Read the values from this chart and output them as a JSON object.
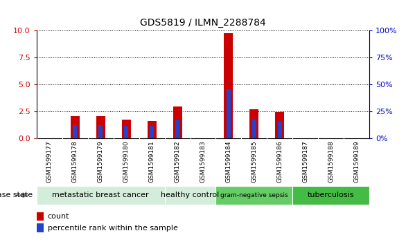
{
  "title": "GDS5819 / ILMN_2288784",
  "samples": [
    "GSM1599177",
    "GSM1599178",
    "GSM1599179",
    "GSM1599180",
    "GSM1599181",
    "GSM1599182",
    "GSM1599183",
    "GSM1599184",
    "GSM1599185",
    "GSM1599186",
    "GSM1599187",
    "GSM1599188",
    "GSM1599189"
  ],
  "count": [
    0,
    2.0,
    2.0,
    1.7,
    1.6,
    2.9,
    0,
    9.7,
    2.7,
    2.4,
    0,
    0,
    0
  ],
  "percentile": [
    0,
    1.2,
    1.2,
    1.1,
    1.1,
    1.7,
    0,
    4.5,
    1.7,
    1.5,
    0,
    0,
    0
  ],
  "disease_groups": [
    {
      "label": "metastatic breast cancer",
      "start": 0,
      "end": 5,
      "color": "#d4edda"
    },
    {
      "label": "healthy control",
      "start": 5,
      "end": 7,
      "color": "#d4edda"
    },
    {
      "label": "gram-negative sepsis",
      "start": 7,
      "end": 10,
      "color": "#66cc66"
    },
    {
      "label": "tuberculosis",
      "start": 10,
      "end": 13,
      "color": "#44bb44"
    }
  ],
  "ylim_left": [
    0,
    10
  ],
  "ylim_right": [
    0,
    100
  ],
  "yticks_left": [
    0,
    2.5,
    5,
    7.5,
    10
  ],
  "yticks_right": [
    0,
    25,
    50,
    75,
    100
  ],
  "count_color": "#cc0000",
  "percentile_color": "#2244cc",
  "bar_width": 0.35,
  "pct_bar_width": 0.15,
  "tick_bg_color": "#cccccc",
  "left_axis_color": "#cc0000",
  "right_axis_color": "#0000cc"
}
